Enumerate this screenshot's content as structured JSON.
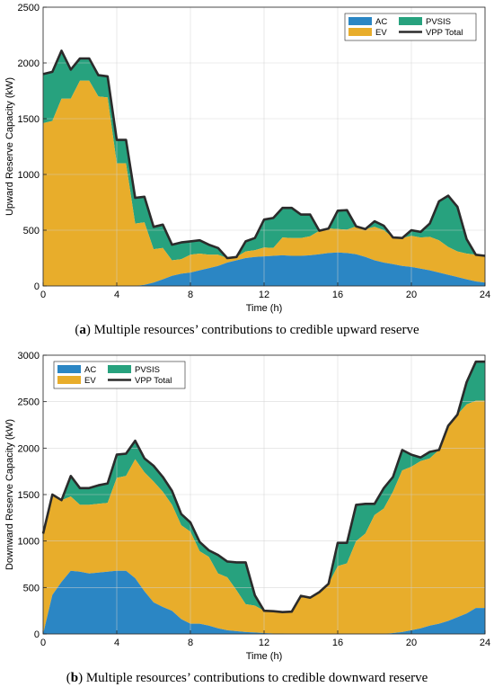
{
  "chart_data": [
    {
      "type": "area",
      "panel_letter": "a",
      "caption": "Multiple resources’ contributions to credible upward reserve",
      "xlabel": "Time (h)",
      "ylabel": "Upward Reserve Capacity (kW)",
      "xlim": [
        0,
        24
      ],
      "ylim": [
        0,
        2500
      ],
      "xticks": [
        "0",
        "4",
        "8",
        "12",
        "16",
        "20",
        "24"
      ],
      "yticks": [
        "0",
        "500",
        "1000",
        "1500",
        "2000",
        "2500"
      ],
      "grid": true,
      "legend_position": "top-right",
      "colors": {
        "AC": "#2b86c4",
        "EV": "#e8ad2b",
        "PVSIS": "#27a27e",
        "VPP Total": "#2b2b2b"
      },
      "x": [
        0,
        0.5,
        1,
        1.5,
        2,
        2.5,
        3,
        3.5,
        4,
        4.5,
        5,
        5.5,
        6,
        6.5,
        7,
        7.5,
        8,
        8.5,
        9,
        9.5,
        10,
        10.5,
        11,
        11.5,
        12,
        12.5,
        13,
        13.5,
        14,
        14.5,
        15,
        15.5,
        16,
        16.5,
        17,
        17.5,
        18,
        18.5,
        19,
        19.5,
        20,
        20.5,
        21,
        21.5,
        22,
        22.5,
        23,
        23.5,
        24
      ],
      "series": [
        {
          "name": "AC",
          "values": [
            0,
            0,
            0,
            0,
            0,
            0,
            0,
            0,
            0,
            0,
            0,
            10,
            30,
            60,
            90,
            110,
            120,
            140,
            160,
            180,
            210,
            230,
            250,
            260,
            265,
            270,
            275,
            270,
            270,
            275,
            285,
            295,
            300,
            295,
            285,
            260,
            230,
            210,
            195,
            180,
            170,
            155,
            140,
            120,
            100,
            80,
            60,
            40,
            30
          ]
        },
        {
          "name": "EV",
          "values": [
            1460,
            1480,
            1680,
            1680,
            1840,
            1840,
            1700,
            1690,
            1100,
            1100,
            560,
            560,
            300,
            280,
            140,
            130,
            160,
            150,
            120,
            100,
            40,
            30,
            60,
            60,
            80,
            70,
            160,
            160,
            160,
            170,
            210,
            220,
            210,
            210,
            250,
            250,
            300,
            290,
            240,
            250,
            280,
            280,
            300,
            290,
            250,
            230,
            230,
            240,
            240
          ]
        },
        {
          "name": "PVSIS",
          "values": [
            440,
            440,
            430,
            260,
            200,
            200,
            190,
            190,
            210,
            210,
            230,
            230,
            200,
            210,
            140,
            150,
            120,
            120,
            90,
            60,
            0,
            0,
            90,
            110,
            250,
            270,
            265,
            270,
            210,
            195,
            0,
            0,
            165,
            175,
            0,
            0,
            50,
            40,
            0,
            0,
            50,
            50,
            120,
            350,
            460,
            400,
            130,
            0,
            0
          ]
        },
        {
          "name": "VPP Total",
          "values": [
            1900,
            1920,
            2110,
            1940,
            2040,
            2040,
            1890,
            1880,
            1310,
            1310,
            790,
            800,
            530,
            550,
            370,
            390,
            400,
            410,
            370,
            340,
            250,
            260,
            400,
            430,
            595,
            610,
            700,
            700,
            640,
            640,
            495,
            515,
            675,
            680,
            535,
            510,
            580,
            540,
            435,
            430,
            500,
            485,
            560,
            760,
            810,
            710,
            420,
            280,
            270
          ]
        }
      ]
    },
    {
      "type": "area",
      "panel_letter": "b",
      "caption": "Multiple resources’ contributions to credible downward reserve",
      "xlabel": "Time (h)",
      "ylabel": "Downward Reserve Capacity (kW)",
      "xlim": [
        0,
        24
      ],
      "ylim": [
        0,
        3000
      ],
      "xticks": [
        "0",
        "4",
        "8",
        "12",
        "16",
        "20",
        "24"
      ],
      "yticks": [
        "0",
        "500",
        "1000",
        "1500",
        "2000",
        "2500",
        "3000"
      ],
      "grid": true,
      "legend_position": "top-left",
      "colors": {
        "AC": "#2b86c4",
        "EV": "#e8ad2b",
        "PVSIS": "#27a27e",
        "VPP Total": "#2b2b2b"
      },
      "x": [
        0,
        0.5,
        1,
        1.5,
        2,
        2.5,
        3,
        3.5,
        4,
        4.5,
        5,
        5.5,
        6,
        6.5,
        7,
        7.5,
        8,
        8.5,
        9,
        9.5,
        10,
        10.5,
        11,
        11.5,
        12,
        12.5,
        13,
        13.5,
        14,
        14.5,
        15,
        15.5,
        16,
        16.5,
        17,
        17.5,
        18,
        18.5,
        19,
        19.5,
        20,
        20.5,
        21,
        21.5,
        22,
        22.5,
        23,
        23.5,
        24
      ],
      "series": [
        {
          "name": "AC",
          "values": [
            0,
            420,
            560,
            680,
            670,
            650,
            660,
            670,
            680,
            680,
            600,
            460,
            340,
            290,
            250,
            160,
            110,
            110,
            90,
            60,
            40,
            30,
            20,
            15,
            10,
            5,
            5,
            0,
            0,
            0,
            0,
            0,
            0,
            0,
            0,
            0,
            0,
            0,
            10,
            20,
            40,
            60,
            90,
            110,
            140,
            180,
            220,
            280,
            280
          ]
        },
        {
          "name": "EV",
          "values": [
            1080,
            1080,
            880,
            800,
            720,
            740,
            740,
            740,
            1000,
            1020,
            1280,
            1280,
            1300,
            1240,
            1140,
            1010,
            990,
            780,
            740,
            590,
            570,
            440,
            300,
            290,
            240,
            240,
            230,
            240,
            410,
            390,
            450,
            540,
            730,
            760,
            1000,
            1080,
            1280,
            1350,
            1520,
            1740,
            1760,
            1800,
            1800,
            1870,
            2100,
            2180,
            2250,
            2230,
            2230
          ]
        },
        {
          "name": "PVSIS",
          "values": [
            0,
            0,
            0,
            220,
            180,
            180,
            200,
            210,
            250,
            240,
            200,
            150,
            170,
            160,
            150,
            120,
            100,
            100,
            70,
            200,
            170,
            300,
            450,
            110,
            0,
            0,
            0,
            0,
            0,
            0,
            0,
            0,
            250,
            220,
            390,
            320,
            120,
            220,
            160,
            220,
            130,
            40,
            70,
            0,
            0,
            0,
            240,
            420,
            420
          ]
        },
        {
          "name": "VPP Total",
          "values": [
            1080,
            1500,
            1440,
            1700,
            1570,
            1570,
            1600,
            1620,
            1930,
            1940,
            2080,
            1890,
            1810,
            1690,
            1540,
            1290,
            1200,
            990,
            900,
            850,
            780,
            770,
            770,
            415,
            250,
            245,
            235,
            240,
            410,
            390,
            450,
            540,
            980,
            980,
            1390,
            1400,
            1400,
            1570,
            1690,
            1980,
            1930,
            1900,
            1960,
            1980,
            2240,
            2360,
            2710,
            2930,
            2930
          ]
        }
      ]
    }
  ],
  "legend_labels": {
    "ac": "AC",
    "ev": "EV",
    "pvsis": "PVSIS",
    "total": "VPP Total"
  }
}
